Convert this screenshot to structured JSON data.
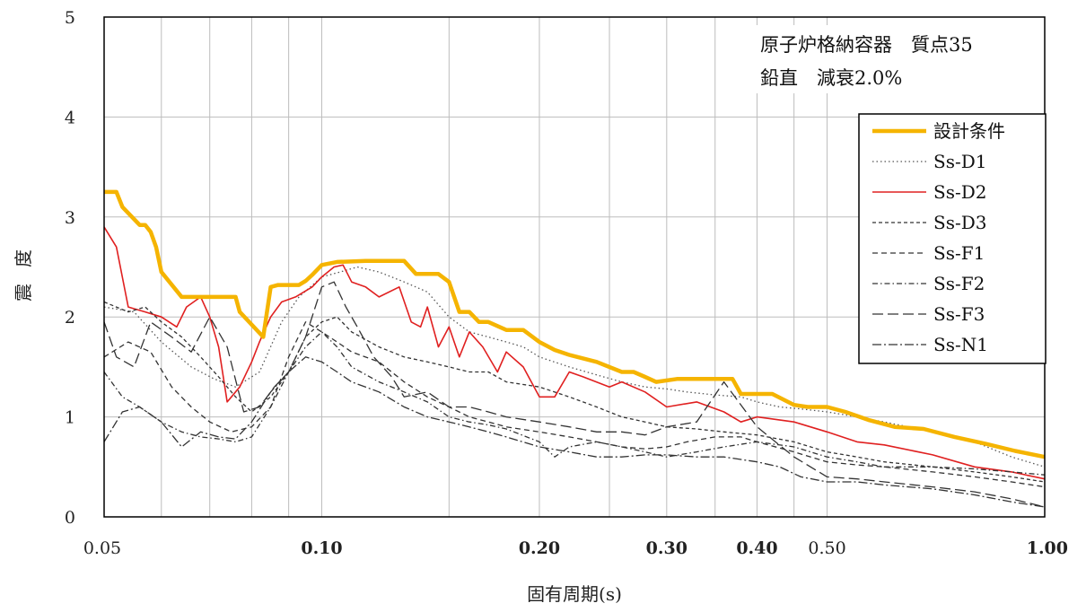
{
  "chart_data": {
    "type": "line",
    "xscale": "log",
    "xlabel": "固有周期(s)",
    "ylabel": "震度",
    "xlim": [
      0.05,
      1.0
    ],
    "ylim": [
      0,
      5
    ],
    "grid": true,
    "legend_position": "right",
    "annotations": [
      "原子炉格納容器　質点35",
      "鉛直　減衰2.0%"
    ],
    "x_tick_labels": [
      {
        "value": 0.05,
        "label": "0.05",
        "bold": false
      },
      {
        "value": 0.1,
        "label": "0.10",
        "bold": true
      },
      {
        "value": 0.2,
        "label": "0.20",
        "bold": true
      },
      {
        "value": 0.3,
        "label": "0.30",
        "bold": true
      },
      {
        "value": 0.4,
        "label": "0.40",
        "bold": true
      },
      {
        "value": 0.5,
        "label": "0.50",
        "bold": false
      },
      {
        "value": 1.0,
        "label": "1.00",
        "bold": true
      }
    ],
    "y_ticks": [
      0,
      1,
      2,
      3,
      4,
      5
    ],
    "x_gridlines": [
      0.06,
      0.07,
      0.08,
      0.09,
      0.1,
      0.15,
      0.2,
      0.25,
      0.3,
      0.35,
      0.4,
      0.45,
      0.5
    ],
    "series": [
      {
        "name": "設計条件",
        "color": "#f5b400",
        "dash": "",
        "width": 4.5,
        "x": [
          0.05,
          0.052,
          0.053,
          0.056,
          0.057,
          0.058,
          0.059,
          0.06,
          0.064,
          0.066,
          0.07,
          0.071,
          0.072,
          0.076,
          0.077,
          0.083,
          0.085,
          0.087,
          0.089,
          0.091,
          0.093,
          0.095,
          0.097,
          0.1,
          0.105,
          0.115,
          0.125,
          0.13,
          0.135,
          0.145,
          0.15,
          0.155,
          0.16,
          0.165,
          0.17,
          0.18,
          0.19,
          0.2,
          0.21,
          0.22,
          0.24,
          0.26,
          0.27,
          0.28,
          0.29,
          0.31,
          0.32,
          0.33,
          0.37,
          0.38,
          0.4,
          0.42,
          0.45,
          0.47,
          0.5,
          0.53,
          0.57,
          0.62,
          0.68,
          0.75,
          0.83,
          0.91,
          1.0
        ],
        "y": [
          3.25,
          3.25,
          3.1,
          2.92,
          2.92,
          2.85,
          2.7,
          2.45,
          2.2,
          2.2,
          2.2,
          2.2,
          2.2,
          2.2,
          2.05,
          1.8,
          2.3,
          2.32,
          2.32,
          2.32,
          2.32,
          2.36,
          2.42,
          2.52,
          2.55,
          2.56,
          2.56,
          2.56,
          2.43,
          2.43,
          2.35,
          2.05,
          2.05,
          1.95,
          1.95,
          1.87,
          1.87,
          1.75,
          1.67,
          1.62,
          1.55,
          1.45,
          1.45,
          1.4,
          1.35,
          1.38,
          1.38,
          1.38,
          1.38,
          1.23,
          1.23,
          1.23,
          1.12,
          1.1,
          1.1,
          1.05,
          0.97,
          0.9,
          0.88,
          0.8,
          0.73,
          0.66,
          0.6
        ]
      },
      {
        "name": "Ss-D1",
        "color": "#555555",
        "dash": "1.5 3",
        "width": 1.3,
        "x": [
          0.05,
          0.055,
          0.06,
          0.066,
          0.071,
          0.076,
          0.082,
          0.088,
          0.093,
          0.1,
          0.106,
          0.112,
          0.12,
          0.13,
          0.14,
          0.15,
          0.16,
          0.17,
          0.18,
          0.19,
          0.2,
          0.22,
          0.24,
          0.26,
          0.28,
          0.3,
          0.32,
          0.35,
          0.38,
          0.4,
          0.43,
          0.46,
          0.5,
          0.55,
          0.6,
          0.7,
          0.8,
          0.9,
          1.0
        ],
        "y": [
          2.1,
          2.05,
          1.75,
          1.5,
          1.38,
          1.3,
          1.45,
          1.95,
          2.2,
          2.4,
          2.45,
          2.5,
          2.45,
          2.35,
          2.25,
          2.0,
          1.85,
          1.8,
          1.75,
          1.7,
          1.6,
          1.5,
          1.42,
          1.35,
          1.3,
          1.28,
          1.25,
          1.22,
          1.2,
          1.15,
          1.1,
          1.08,
          1.05,
          1.0,
          0.95,
          0.85,
          0.75,
          0.6,
          0.5
        ]
      },
      {
        "name": "Ss-D2",
        "color": "#e02020",
        "dash": "",
        "width": 1.6,
        "x": [
          0.05,
          0.052,
          0.054,
          0.057,
          0.06,
          0.063,
          0.065,
          0.068,
          0.07,
          0.072,
          0.074,
          0.077,
          0.08,
          0.082,
          0.085,
          0.088,
          0.092,
          0.097,
          0.1,
          0.104,
          0.107,
          0.11,
          0.115,
          0.12,
          0.128,
          0.133,
          0.137,
          0.14,
          0.145,
          0.15,
          0.155,
          0.16,
          0.167,
          0.175,
          0.18,
          0.19,
          0.2,
          0.21,
          0.22,
          0.23,
          0.25,
          0.26,
          0.28,
          0.3,
          0.33,
          0.36,
          0.38,
          0.4,
          0.45,
          0.5,
          0.55,
          0.6,
          0.7,
          0.8,
          0.9,
          1.0
        ],
        "y": [
          2.9,
          2.7,
          2.1,
          2.05,
          2.0,
          1.9,
          2.1,
          2.2,
          2.0,
          1.7,
          1.15,
          1.3,
          1.55,
          1.75,
          2.0,
          2.15,
          2.2,
          2.3,
          2.4,
          2.5,
          2.52,
          2.35,
          2.3,
          2.2,
          2.3,
          1.95,
          1.9,
          2.1,
          1.7,
          1.9,
          1.6,
          1.85,
          1.7,
          1.45,
          1.65,
          1.5,
          1.2,
          1.2,
          1.45,
          1.4,
          1.3,
          1.35,
          1.25,
          1.1,
          1.15,
          1.05,
          0.95,
          1.0,
          0.95,
          0.85,
          0.75,
          0.72,
          0.62,
          0.5,
          0.45,
          0.38
        ]
      },
      {
        "name": "Ss-D3",
        "color": "#333333",
        "dash": "4 3",
        "width": 1.3,
        "x": [
          0.05,
          0.054,
          0.057,
          0.06,
          0.064,
          0.068,
          0.072,
          0.076,
          0.08,
          0.085,
          0.09,
          0.095,
          0.1,
          0.105,
          0.11,
          0.12,
          0.13,
          0.14,
          0.15,
          0.16,
          0.17,
          0.18,
          0.2,
          0.22,
          0.24,
          0.26,
          0.28,
          0.3,
          0.33,
          0.36,
          0.4,
          0.45,
          0.5,
          0.55,
          0.6,
          0.7,
          0.8,
          0.9,
          1.0
        ],
        "y": [
          2.15,
          2.05,
          2.1,
          1.95,
          1.8,
          1.6,
          1.4,
          1.2,
          1.05,
          1.2,
          1.45,
          1.8,
          1.95,
          2.0,
          1.85,
          1.7,
          1.6,
          1.55,
          1.5,
          1.45,
          1.45,
          1.35,
          1.3,
          1.2,
          1.1,
          1.0,
          0.95,
          0.9,
          0.88,
          0.85,
          0.82,
          0.75,
          0.65,
          0.6,
          0.55,
          0.5,
          0.45,
          0.4,
          0.35
        ]
      },
      {
        "name": "Ss-F1",
        "color": "#333333",
        "dash": "6 4",
        "width": 1.3,
        "x": [
          0.05,
          0.054,
          0.058,
          0.062,
          0.066,
          0.07,
          0.075,
          0.08,
          0.085,
          0.09,
          0.095,
          0.1,
          0.105,
          0.11,
          0.12,
          0.13,
          0.14,
          0.15,
          0.16,
          0.17,
          0.18,
          0.2,
          0.22,
          0.24,
          0.26,
          0.28,
          0.3,
          0.32,
          0.35,
          0.38,
          0.4,
          0.45,
          0.5,
          0.55,
          0.6,
          0.7,
          0.8,
          0.9,
          1.0
        ],
        "y": [
          1.6,
          1.75,
          1.65,
          1.3,
          1.1,
          0.95,
          0.85,
          0.9,
          1.1,
          1.6,
          1.95,
          1.85,
          1.75,
          1.65,
          1.55,
          1.35,
          1.2,
          1.1,
          1.0,
          0.95,
          0.9,
          0.85,
          0.8,
          0.75,
          0.7,
          0.68,
          0.7,
          0.75,
          0.8,
          0.8,
          0.75,
          0.65,
          0.55,
          0.52,
          0.5,
          0.45,
          0.4,
          0.35,
          0.3
        ]
      },
      {
        "name": "Ss-F2",
        "color": "#333333",
        "dash": "6 3 1.5 3",
        "width": 1.3,
        "x": [
          0.05,
          0.053,
          0.056,
          0.06,
          0.064,
          0.068,
          0.072,
          0.076,
          0.08,
          0.085,
          0.09,
          0.095,
          0.1,
          0.105,
          0.11,
          0.12,
          0.13,
          0.14,
          0.15,
          0.16,
          0.17,
          0.18,
          0.2,
          0.21,
          0.22,
          0.24,
          0.26,
          0.28,
          0.3,
          0.33,
          0.36,
          0.4,
          0.45,
          0.5,
          0.55,
          0.6,
          0.7,
          0.8,
          0.9,
          1.0
        ],
        "y": [
          1.45,
          1.2,
          1.1,
          0.95,
          0.85,
          0.8,
          0.78,
          0.75,
          0.8,
          1.1,
          1.45,
          1.7,
          1.85,
          1.7,
          1.5,
          1.35,
          1.25,
          1.15,
          1.0,
          0.95,
          0.92,
          0.88,
          0.75,
          0.6,
          0.7,
          0.75,
          0.7,
          0.65,
          0.6,
          0.65,
          0.7,
          0.75,
          0.7,
          0.6,
          0.55,
          0.5,
          0.5,
          0.48,
          0.45,
          0.42
        ]
      },
      {
        "name": "Ss-F3",
        "color": "#333333",
        "dash": "12 5",
        "width": 1.3,
        "x": [
          0.05,
          0.052,
          0.055,
          0.058,
          0.062,
          0.066,
          0.07,
          0.074,
          0.078,
          0.082,
          0.086,
          0.09,
          0.095,
          0.1,
          0.104,
          0.108,
          0.112,
          0.118,
          0.125,
          0.13,
          0.14,
          0.15,
          0.16,
          0.17,
          0.18,
          0.2,
          0.22,
          0.24,
          0.26,
          0.28,
          0.3,
          0.33,
          0.36,
          0.4,
          0.45,
          0.5,
          0.55,
          0.6,
          0.7,
          0.8,
          0.9,
          1.0
        ],
        "y": [
          1.95,
          1.6,
          1.5,
          1.95,
          1.8,
          1.65,
          2.0,
          1.7,
          1.05,
          1.1,
          1.3,
          1.45,
          1.8,
          2.3,
          2.35,
          2.1,
          1.9,
          1.6,
          1.4,
          1.2,
          1.25,
          1.1,
          1.1,
          1.05,
          1.0,
          0.95,
          0.9,
          0.85,
          0.85,
          0.82,
          0.9,
          0.95,
          1.35,
          0.9,
          0.6,
          0.4,
          0.38,
          0.35,
          0.3,
          0.25,
          0.18,
          0.1
        ]
      },
      {
        "name": "Ss-N1",
        "color": "#333333",
        "dash": "10 3 2 3",
        "width": 1.3,
        "x": [
          0.05,
          0.053,
          0.056,
          0.06,
          0.064,
          0.068,
          0.072,
          0.076,
          0.08,
          0.085,
          0.09,
          0.095,
          0.1,
          0.105,
          0.11,
          0.12,
          0.13,
          0.14,
          0.15,
          0.16,
          0.17,
          0.18,
          0.2,
          0.22,
          0.24,
          0.26,
          0.28,
          0.3,
          0.33,
          0.36,
          0.4,
          0.43,
          0.46,
          0.5,
          0.55,
          0.6,
          0.7,
          0.8,
          0.9,
          1.0
        ],
        "y": [
          0.75,
          1.05,
          1.1,
          0.95,
          0.7,
          0.85,
          0.8,
          0.78,
          0.95,
          1.25,
          1.45,
          1.6,
          1.55,
          1.45,
          1.35,
          1.25,
          1.1,
          1.0,
          0.95,
          0.9,
          0.85,
          0.8,
          0.7,
          0.65,
          0.6,
          0.6,
          0.62,
          0.62,
          0.6,
          0.6,
          0.55,
          0.5,
          0.4,
          0.35,
          0.35,
          0.32,
          0.28,
          0.22,
          0.15,
          0.1
        ]
      }
    ]
  }
}
